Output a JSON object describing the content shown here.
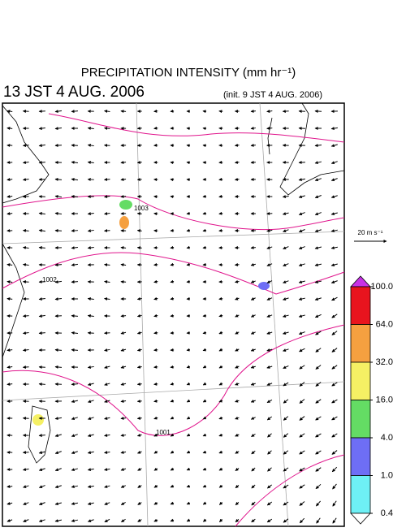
{
  "header": {
    "title": "PRECIPITATION INTENSITY (mm hr⁻¹)",
    "time": "13 JST 4 AUG. 2006",
    "init": "(init. 9 JST 4 AUG. 2006)"
  },
  "wind_scale": {
    "label": "20 m s⁻¹"
  },
  "isobar_labels": [
    "1003",
    "1002",
    "1001"
  ],
  "colorbar": {
    "levels": [
      {
        "value": 100,
        "label": "100.0"
      },
      {
        "value": 64,
        "label": "64.0"
      },
      {
        "value": 32,
        "label": "32.0"
      },
      {
        "value": 16,
        "label": "16.0"
      },
      {
        "value": 4,
        "label": "4.0"
      },
      {
        "value": 1,
        "label": "1.0"
      },
      {
        "value": 0.4,
        "label": "0.4"
      }
    ],
    "colors": [
      "#e8141e",
      "#f5a040",
      "#f5f064",
      "#64dc64",
      "#6e6ef5",
      "#6ef0f5"
    ],
    "over_color": "#c832e6",
    "under_color": "#ffffff"
  }
}
